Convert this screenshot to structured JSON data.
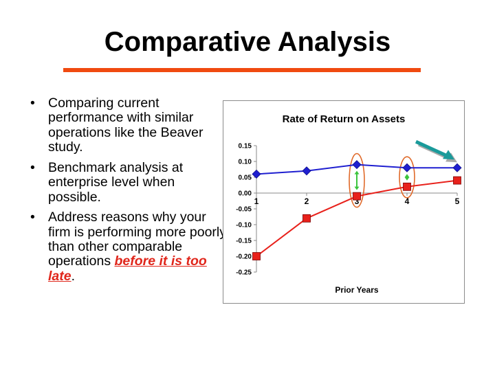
{
  "slide": {
    "title": "Comparative Analysis",
    "accent_color": "#f04a10",
    "bullets": [
      {
        "text": "Comparing current performance with similar operations like the Beaver study."
      },
      {
        "text": "Benchmark analysis at enterprise level when possible."
      },
      {
        "text_before": "Address reasons why your firm is performing more poorly than other comparable operations ",
        "emphasis": "before it is too late",
        "text_after": "."
      }
    ],
    "bullet_glyph": "•"
  },
  "chart_data": {
    "type": "line",
    "title": "Rate of Return on Assets",
    "xlabel": "Prior Years",
    "ylabel": "",
    "categories": [
      "1",
      "2",
      "3",
      "4",
      "5"
    ],
    "ylim": [
      -0.25,
      0.15
    ],
    "yticks": [
      "0.15",
      "0.10",
      "0.05",
      "0.00",
      "-0.05",
      "-0.10",
      "-0.15",
      "-0.20",
      "-0.25"
    ],
    "grid": false,
    "legend": "none",
    "series": [
      {
        "color": "#1f1fd0",
        "marker": "diamond",
        "values": [
          0.06,
          0.07,
          0.09,
          0.08,
          0.08
        ]
      },
      {
        "color": "#e8211b",
        "marker": "square",
        "values": [
          -0.2,
          -0.08,
          -0.01,
          0.02,
          0.04
        ]
      }
    ],
    "annotations": {
      "highlight_categories": [
        "3",
        "4"
      ],
      "highlight_color": "#e06a2a",
      "gap_arrow_color": "#3cc43c",
      "trend_arrow_color": "#1a9a9a",
      "trend_arrow_shadow": "#a8a8a8"
    }
  }
}
